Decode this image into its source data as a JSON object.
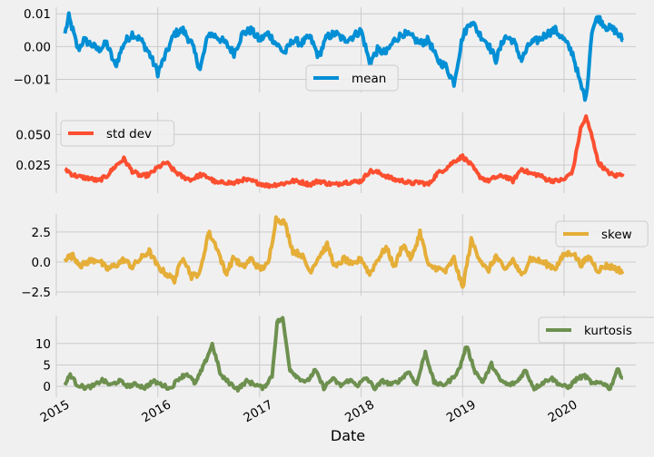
{
  "chart_data": [
    {
      "type": "line",
      "title": "",
      "xlabel": "",
      "ylabel": "",
      "series": [
        {
          "name": "mean",
          "color": "#008fd5"
        }
      ],
      "legend": "bottom-center",
      "ylim": [
        -0.014,
        0.012
      ],
      "yticks": [
        {
          "v": 0.01,
          "label": "0.01"
        },
        {
          "v": 0.0,
          "label": "0.00"
        },
        {
          "v": -0.01,
          "label": "−0.01"
        }
      ],
      "grid": true,
      "points": [
        [
          "2015-02-01",
          0.004
        ],
        [
          "2015-02-15",
          0.009
        ],
        [
          "2015-03-01",
          0.005
        ],
        [
          "2015-03-20",
          -0.001
        ],
        [
          "2015-04-10",
          0.002
        ],
        [
          "2015-05-01",
          0.001
        ],
        [
          "2015-06-01",
          -0.001
        ],
        [
          "2015-07-01",
          0.001
        ],
        [
          "2015-08-01",
          -0.006
        ],
        [
          "2015-09-01",
          0.001
        ],
        [
          "2015-10-01",
          0.004
        ],
        [
          "2015-11-01",
          0.002
        ],
        [
          "2015-12-01",
          -0.002
        ],
        [
          "2016-01-01",
          -0.008
        ],
        [
          "2016-02-01",
          -0.002
        ],
        [
          "2016-03-01",
          0.004
        ],
        [
          "2016-04-01",
          0.005
        ],
        [
          "2016-05-01",
          0.001
        ],
        [
          "2016-06-01",
          -0.007
        ],
        [
          "2016-07-01",
          0.004
        ],
        [
          "2016-08-01",
          0.003
        ],
        [
          "2016-09-01",
          0.001
        ],
        [
          "2016-10-01",
          -0.002
        ],
        [
          "2016-11-01",
          0.004
        ],
        [
          "2016-12-01",
          0.005
        ],
        [
          "2017-01-01",
          0.002
        ],
        [
          "2017-02-01",
          0.004
        ],
        [
          "2017-03-01",
          0.001
        ],
        [
          "2017-04-01",
          -0.002
        ],
        [
          "2017-05-01",
          0.002
        ],
        [
          "2017-06-01",
          0.001
        ],
        [
          "2017-07-01",
          0.003
        ],
        [
          "2017-08-01",
          -0.003
        ],
        [
          "2017-09-01",
          0.003
        ],
        [
          "2017-10-01",
          0.004
        ],
        [
          "2017-11-01",
          0.002
        ],
        [
          "2017-12-01",
          0.003
        ],
        [
          "2018-01-01",
          0.005
        ],
        [
          "2018-02-01",
          -0.005
        ],
        [
          "2018-03-01",
          -0.001
        ],
        [
          "2018-04-01",
          -0.002
        ],
        [
          "2018-05-01",
          0.002
        ],
        [
          "2018-06-01",
          0.004
        ],
        [
          "2018-07-01",
          0.003
        ],
        [
          "2018-08-01",
          0.001
        ],
        [
          "2018-09-01",
          0.002
        ],
        [
          "2018-10-01",
          -0.004
        ],
        [
          "2018-11-01",
          -0.006
        ],
        [
          "2018-12-01",
          -0.011
        ],
        [
          "2019-01-01",
          0.003
        ],
        [
          "2019-02-01",
          0.008
        ],
        [
          "2019-03-01",
          0.004
        ],
        [
          "2019-04-01",
          0.001
        ],
        [
          "2019-05-01",
          -0.004
        ],
        [
          "2019-06-01",
          0.003
        ],
        [
          "2019-07-01",
          0.002
        ],
        [
          "2019-08-01",
          -0.004
        ],
        [
          "2019-09-01",
          0.001
        ],
        [
          "2019-10-01",
          0.002
        ],
        [
          "2019-11-01",
          0.004
        ],
        [
          "2019-12-01",
          0.005
        ],
        [
          "2020-01-01",
          0.002
        ],
        [
          "2020-02-01",
          -0.002
        ],
        [
          "2020-03-01",
          -0.012
        ],
        [
          "2020-03-20",
          -0.016
        ],
        [
          "2020-04-10",
          0.005
        ],
        [
          "2020-05-01",
          0.009
        ],
        [
          "2020-06-01",
          0.006
        ],
        [
          "2020-07-01",
          0.005
        ],
        [
          "2020-07-31",
          0.002
        ]
      ]
    },
    {
      "type": "line",
      "title": "",
      "xlabel": "",
      "ylabel": "",
      "series": [
        {
          "name": "std dev",
          "color": "#fc4f30"
        }
      ],
      "legend": "top-left",
      "ylim": [
        0.002,
        0.068
      ],
      "yticks": [
        {
          "v": 0.05,
          "label": "0.050"
        },
        {
          "v": 0.025,
          "label": "0.025"
        }
      ],
      "grid": true,
      "points": [
        [
          "2015-02-01",
          0.022
        ],
        [
          "2015-03-01",
          0.017
        ],
        [
          "2015-04-01",
          0.015
        ],
        [
          "2015-05-01",
          0.014
        ],
        [
          "2015-06-01",
          0.012
        ],
        [
          "2015-07-01",
          0.016
        ],
        [
          "2015-08-01",
          0.024
        ],
        [
          "2015-09-01",
          0.03
        ],
        [
          "2015-10-01",
          0.02
        ],
        [
          "2015-11-01",
          0.016
        ],
        [
          "2015-12-01",
          0.017
        ],
        [
          "2016-01-01",
          0.023
        ],
        [
          "2016-02-01",
          0.027
        ],
        [
          "2016-03-01",
          0.02
        ],
        [
          "2016-04-01",
          0.015
        ],
        [
          "2016-05-01",
          0.013
        ],
        [
          "2016-06-01",
          0.017
        ],
        [
          "2016-07-01",
          0.015
        ],
        [
          "2016-08-01",
          0.01
        ],
        [
          "2016-09-01",
          0.011
        ],
        [
          "2016-10-01",
          0.01
        ],
        [
          "2016-11-01",
          0.013
        ],
        [
          "2016-12-01",
          0.012
        ],
        [
          "2017-01-01",
          0.01
        ],
        [
          "2017-02-01",
          0.008
        ],
        [
          "2017-03-01",
          0.009
        ],
        [
          "2017-04-01",
          0.01
        ],
        [
          "2017-05-01",
          0.012
        ],
        [
          "2017-06-01",
          0.011
        ],
        [
          "2017-07-01",
          0.009
        ],
        [
          "2017-08-01",
          0.012
        ],
        [
          "2017-09-01",
          0.01
        ],
        [
          "2017-10-01",
          0.009
        ],
        [
          "2017-11-01",
          0.011
        ],
        [
          "2017-12-01",
          0.011
        ],
        [
          "2018-01-01",
          0.012
        ],
        [
          "2018-02-01",
          0.02
        ],
        [
          "2018-03-01",
          0.019
        ],
        [
          "2018-04-01",
          0.016
        ],
        [
          "2018-05-01",
          0.013
        ],
        [
          "2018-06-01",
          0.012
        ],
        [
          "2018-07-01",
          0.01
        ],
        [
          "2018-08-01",
          0.011
        ],
        [
          "2018-09-01",
          0.009
        ],
        [
          "2018-10-01",
          0.018
        ],
        [
          "2018-11-01",
          0.022
        ],
        [
          "2018-12-01",
          0.028
        ],
        [
          "2019-01-01",
          0.032
        ],
        [
          "2019-02-01",
          0.025
        ],
        [
          "2019-03-01",
          0.016
        ],
        [
          "2019-04-01",
          0.012
        ],
        [
          "2019-05-01",
          0.015
        ],
        [
          "2019-06-01",
          0.016
        ],
        [
          "2019-07-01",
          0.012
        ],
        [
          "2019-08-01",
          0.022
        ],
        [
          "2019-09-01",
          0.018
        ],
        [
          "2019-10-01",
          0.017
        ],
        [
          "2019-11-01",
          0.013
        ],
        [
          "2019-12-01",
          0.012
        ],
        [
          "2020-01-01",
          0.013
        ],
        [
          "2020-02-01",
          0.02
        ],
        [
          "2020-03-01",
          0.055
        ],
        [
          "2020-03-20",
          0.064
        ],
        [
          "2020-04-15",
          0.045
        ],
        [
          "2020-05-01",
          0.028
        ],
        [
          "2020-06-01",
          0.02
        ],
        [
          "2020-07-01",
          0.016
        ],
        [
          "2020-07-31",
          0.018
        ]
      ]
    },
    {
      "type": "line",
      "title": "",
      "xlabel": "",
      "ylabel": "",
      "series": [
        {
          "name": "skew",
          "color": "#e5ae38"
        }
      ],
      "legend": "top-right",
      "ylim": [
        -2.8,
        4.0
      ],
      "yticks": [
        {
          "v": 2.5,
          "label": "2.5"
        },
        {
          "v": 0.0,
          "label": "0.0"
        },
        {
          "v": -2.5,
          "label": "−2.5"
        }
      ],
      "grid": true,
      "points": [
        [
          "2015-02-01",
          0.3
        ],
        [
          "2015-03-01",
          0.5
        ],
        [
          "2015-04-01",
          -0.3
        ],
        [
          "2015-05-01",
          0.1
        ],
        [
          "2015-06-01",
          0.2
        ],
        [
          "2015-07-01",
          -0.6
        ],
        [
          "2015-08-01",
          -0.3
        ],
        [
          "2015-09-01",
          0.2
        ],
        [
          "2015-10-01",
          -0.4
        ],
        [
          "2015-11-01",
          0.3
        ],
        [
          "2015-12-01",
          0.9
        ],
        [
          "2016-01-01",
          -0.4
        ],
        [
          "2016-02-01",
          -1.0
        ],
        [
          "2016-03-01",
          -1.5
        ],
        [
          "2016-04-01",
          0.5
        ],
        [
          "2016-05-01",
          -1.2
        ],
        [
          "2016-06-01",
          -0.9
        ],
        [
          "2016-07-01",
          2.5
        ],
        [
          "2016-08-01",
          1.2
        ],
        [
          "2016-09-01",
          -1.0
        ],
        [
          "2016-10-01",
          0.4
        ],
        [
          "2016-11-01",
          -0.5
        ],
        [
          "2016-12-01",
          0.3
        ],
        [
          "2017-01-01",
          -0.6
        ],
        [
          "2017-02-01",
          -0.2
        ],
        [
          "2017-03-01",
          3.6
        ],
        [
          "2017-04-01",
          3.3
        ],
        [
          "2017-05-01",
          0.9
        ],
        [
          "2017-06-01",
          0.6
        ],
        [
          "2017-07-01",
          -0.8
        ],
        [
          "2017-08-01",
          0.4
        ],
        [
          "2017-09-01",
          1.4
        ],
        [
          "2017-10-01",
          -0.5
        ],
        [
          "2017-11-01",
          0.3
        ],
        [
          "2017-12-01",
          -0.3
        ],
        [
          "2018-01-01",
          0.3
        ],
        [
          "2018-02-01",
          -1.0
        ],
        [
          "2018-03-01",
          0.2
        ],
        [
          "2018-04-01",
          1.2
        ],
        [
          "2018-05-01",
          -0.4
        ],
        [
          "2018-06-01",
          1.5
        ],
        [
          "2018-07-01",
          0.2
        ],
        [
          "2018-08-01",
          2.5
        ],
        [
          "2018-09-01",
          -0.4
        ],
        [
          "2018-10-01",
          -0.5
        ],
        [
          "2018-11-01",
          -0.8
        ],
        [
          "2018-12-01",
          0.3
        ],
        [
          "2019-01-01",
          -2.2
        ],
        [
          "2019-02-01",
          1.8
        ],
        [
          "2019-03-01",
          0.4
        ],
        [
          "2019-04-01",
          -0.8
        ],
        [
          "2019-05-01",
          0.5
        ],
        [
          "2019-06-01",
          -0.7
        ],
        [
          "2019-07-01",
          0.2
        ],
        [
          "2019-08-01",
          -1.2
        ],
        [
          "2019-09-01",
          0.3
        ],
        [
          "2019-10-01",
          0.1
        ],
        [
          "2019-11-01",
          -0.2
        ],
        [
          "2019-12-01",
          -0.5
        ],
        [
          "2020-01-01",
          0.6
        ],
        [
          "2020-02-01",
          0.8
        ],
        [
          "2020-03-01",
          -0.2
        ],
        [
          "2020-04-01",
          0.4
        ],
        [
          "2020-05-01",
          -0.7
        ],
        [
          "2020-06-01",
          -0.3
        ],
        [
          "2020-07-01",
          -0.5
        ],
        [
          "2020-07-31",
          -0.8
        ]
      ]
    },
    {
      "type": "line",
      "title": "",
      "xlabel": "Date",
      "ylabel": "",
      "series": [
        {
          "name": "kurtosis",
          "color": "#6d904f"
        }
      ],
      "legend": "top-right",
      "ylim": [
        -2.5,
        16.5
      ],
      "yticks": [
        {
          "v": 10,
          "label": "10"
        },
        {
          "v": 5,
          "label": "5"
        },
        {
          "v": 0,
          "label": "0"
        }
      ],
      "grid": true,
      "points": [
        [
          "2015-02-01",
          0.3
        ],
        [
          "2015-02-20",
          2.8
        ],
        [
          "2015-03-15",
          0.5
        ],
        [
          "2015-04-15",
          -0.3
        ],
        [
          "2015-05-15",
          0.1
        ],
        [
          "2015-06-15",
          1.5
        ],
        [
          "2015-07-15",
          0.3
        ],
        [
          "2015-08-15",
          1.3
        ],
        [
          "2015-09-15",
          0.1
        ],
        [
          "2015-10-15",
          0.5
        ],
        [
          "2015-11-15",
          -0.3
        ],
        [
          "2015-12-15",
          1.2
        ],
        [
          "2016-01-15",
          0.4
        ],
        [
          "2016-02-15",
          -0.5
        ],
        [
          "2016-03-15",
          1.8
        ],
        [
          "2016-04-15",
          3.0
        ],
        [
          "2016-05-15",
          0.6
        ],
        [
          "2016-06-15",
          5.0
        ],
        [
          "2016-07-15",
          9.8
        ],
        [
          "2016-08-15",
          2.5
        ],
        [
          "2016-09-15",
          0.8
        ],
        [
          "2016-10-15",
          -0.6
        ],
        [
          "2016-11-15",
          1.2
        ],
        [
          "2016-12-15",
          0.5
        ],
        [
          "2017-01-15",
          -0.4
        ],
        [
          "2017-02-15",
          2.5
        ],
        [
          "2017-03-05",
          15.0
        ],
        [
          "2017-03-25",
          15.8
        ],
        [
          "2017-04-20",
          4.0
        ],
        [
          "2017-05-20",
          2.0
        ],
        [
          "2017-06-20",
          1.0
        ],
        [
          "2017-07-20",
          3.8
        ],
        [
          "2017-08-20",
          -0.3
        ],
        [
          "2017-09-20",
          1.8
        ],
        [
          "2017-10-20",
          0.2
        ],
        [
          "2017-11-20",
          1.5
        ],
        [
          "2017-12-20",
          0.3
        ],
        [
          "2018-01-20",
          2.0
        ],
        [
          "2018-02-20",
          -0.5
        ],
        [
          "2018-03-20",
          1.3
        ],
        [
          "2018-04-20",
          0.4
        ],
        [
          "2018-05-20",
          1.4
        ],
        [
          "2018-06-20",
          3.5
        ],
        [
          "2018-07-20",
          0.5
        ],
        [
          "2018-08-20",
          8.0
        ],
        [
          "2018-09-20",
          1.0
        ],
        [
          "2018-10-20",
          0.2
        ],
        [
          "2018-11-20",
          1.5
        ],
        [
          "2018-12-20",
          4.0
        ],
        [
          "2019-01-15",
          9.5
        ],
        [
          "2019-02-15",
          3.5
        ],
        [
          "2019-03-15",
          1.0
        ],
        [
          "2019-04-15",
          5.2
        ],
        [
          "2019-05-15",
          1.5
        ],
        [
          "2019-06-15",
          0.3
        ],
        [
          "2019-07-15",
          1.0
        ],
        [
          "2019-08-15",
          3.8
        ],
        [
          "2019-09-15",
          -0.5
        ],
        [
          "2019-10-15",
          0.8
        ],
        [
          "2019-11-15",
          2.0
        ],
        [
          "2019-12-15",
          0.5
        ],
        [
          "2020-01-15",
          -0.3
        ],
        [
          "2020-02-15",
          1.7
        ],
        [
          "2020-03-15",
          2.5
        ],
        [
          "2020-04-15",
          0.5
        ],
        [
          "2020-05-15",
          1.0
        ],
        [
          "2020-06-15",
          -0.5
        ],
        [
          "2020-07-10",
          4.0
        ],
        [
          "2020-07-31",
          2.0
        ]
      ]
    }
  ],
  "x_axis": {
    "start": "2015-01-01",
    "end": "2020-09-15",
    "ticks": [
      {
        "date": "2015-01-01",
        "label": "2015"
      },
      {
        "date": "2016-01-01",
        "label": "2016"
      },
      {
        "date": "2017-01-01",
        "label": "2017"
      },
      {
        "date": "2018-01-01",
        "label": "2018"
      },
      {
        "date": "2019-01-01",
        "label": "2019"
      },
      {
        "date": "2020-01-01",
        "label": "2020"
      }
    ],
    "label": "Date"
  }
}
